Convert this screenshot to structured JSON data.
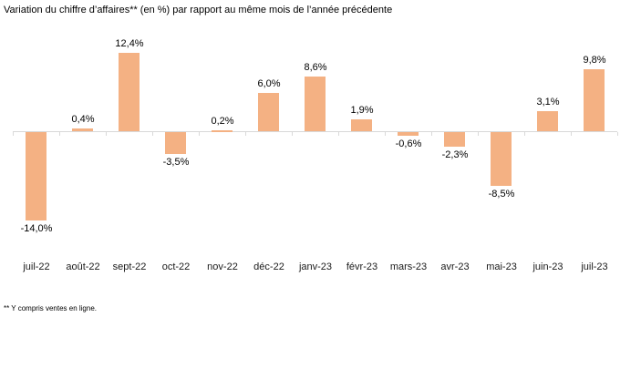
{
  "title": "Variation du chiffre d’affaires** (en %) par rapport au même mois de l’année précédente",
  "footnote": "** Y compris ventes en ligne.",
  "chart_data": {
    "type": "bar",
    "title": "Variation du chiffre d’affaires** (en %) par rapport au même mois de l’année précédente",
    "categories": [
      "juil-22",
      "août-22",
      "sept-22",
      "oct-22",
      "nov-22",
      "déc-22",
      "janv-23",
      "févr-23",
      "mars-23",
      "avr-23",
      "mai-23",
      "juin-23",
      "juil-23"
    ],
    "values": [
      -14.0,
      0.4,
      12.4,
      -3.5,
      0.2,
      6.0,
      8.6,
      1.9,
      -0.6,
      -2.3,
      -8.5,
      3.1,
      9.8
    ],
    "data_labels": [
      "-14,0%",
      "0,4%",
      "12,4%",
      "-3,5%",
      "0,2%",
      "6,0%",
      "8,6%",
      "1,9%",
      "-0,6%",
      "-2,3%",
      "-8,5%",
      "3,1%",
      "9,8%"
    ],
    "xlabel": "",
    "ylabel": "",
    "ylim": [
      -14.0,
      12.4
    ],
    "grid": false,
    "legend": false,
    "bar_color": "#F4B183",
    "axis_color": "#D9D9D9",
    "label_color": "#000000"
  }
}
